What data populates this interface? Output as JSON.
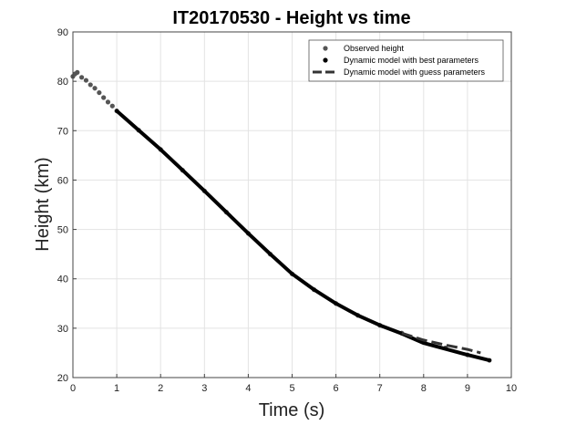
{
  "chart_data": {
    "type": "line",
    "title": "IT20170530 - Height vs time",
    "xlabel": "Time (s)",
    "ylabel": "Height (km)",
    "xlim": [
      0,
      10
    ],
    "ylim": [
      20,
      90
    ],
    "xticks": [
      "0",
      "1",
      "2",
      "3",
      "4",
      "5",
      "6",
      "7",
      "8",
      "9",
      "10"
    ],
    "yticks": [
      "20",
      "30",
      "40",
      "50",
      "60",
      "70",
      "80",
      "90"
    ],
    "grid": true,
    "legend_position": "top-right",
    "series": [
      {
        "name": "Observed height",
        "style": "markers",
        "color": "#555555",
        "x": [
          0.0,
          0.05,
          0.1,
          0.2,
          0.3,
          0.4,
          0.5,
          0.6,
          0.7,
          0.8,
          0.9,
          1.0,
          1.5,
          2.0,
          2.5,
          3.0,
          3.5,
          4.0,
          4.5,
          5.0,
          5.5,
          6.0,
          6.5,
          7.0,
          7.5,
          8.0,
          8.5,
          9.0,
          9.5
        ],
        "y": [
          81.0,
          81.5,
          81.8,
          80.8,
          80.2,
          79.3,
          78.6,
          77.7,
          76.7,
          75.8,
          75.0,
          74.0,
          70.1,
          66.2,
          62.0,
          57.8,
          53.5,
          49.2,
          45.0,
          41.0,
          37.8,
          35.0,
          32.6,
          30.6,
          29.0,
          27.4,
          26.0,
          24.6,
          23.5
        ]
      },
      {
        "name": "Dynamic model with best parameters",
        "style": "solid",
        "color": "#000000",
        "x": [
          1.0,
          1.5,
          2.0,
          2.5,
          3.0,
          3.5,
          4.0,
          4.5,
          5.0,
          5.5,
          6.0,
          6.5,
          7.0,
          7.5,
          8.0,
          8.5,
          9.0,
          9.5
        ],
        "y": [
          74.0,
          70.1,
          66.2,
          62.0,
          57.8,
          53.5,
          49.2,
          45.0,
          41.0,
          37.8,
          35.0,
          32.6,
          30.6,
          28.9,
          27.0,
          25.8,
          24.6,
          23.5
        ]
      },
      {
        "name": "Dynamic model with guess parameters",
        "style": "dashed",
        "color": "#333333",
        "x": [
          7.5,
          8.0,
          8.5,
          9.0,
          9.3
        ],
        "y": [
          29.0,
          27.6,
          26.6,
          25.7,
          25.0
        ]
      }
    ]
  }
}
